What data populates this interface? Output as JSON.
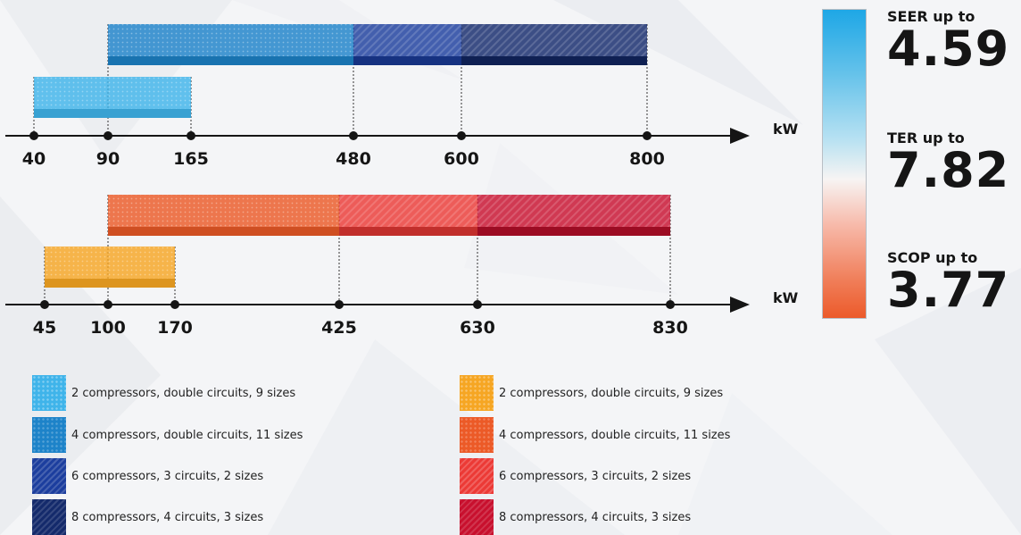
{
  "chart_data": [
    {
      "type": "bar",
      "subtype": "range",
      "unit": "kW",
      "ticks": [
        40,
        90,
        165,
        480,
        600,
        800
      ],
      "series": [
        {
          "name": "2 compressors, double circuits, 9 sizes",
          "range": [
            40,
            165
          ],
          "color": "#3fb4ea"
        },
        {
          "name": "4 compressors, double circuits, 11 sizes",
          "range": [
            90,
            480
          ],
          "color": "#1d83c9"
        },
        {
          "name": "6 compressors, 3 circuits, 2 sizes",
          "range": [
            480,
            600
          ],
          "color": "#1c3e9e"
        },
        {
          "name": "8 compressors, 4 circuits, 3 sizes",
          "range": [
            600,
            800
          ],
          "color": "#142a6b"
        }
      ]
    },
    {
      "type": "bar",
      "subtype": "range",
      "unit": "kW",
      "ticks": [
        45,
        100,
        170,
        425,
        630,
        830
      ],
      "series": [
        {
          "name": "2 compressors, double circuits, 9 sizes",
          "range": [
            45,
            170
          ],
          "color": "#f6a623"
        },
        {
          "name": "4 compressors, double circuits, 11 sizes",
          "range": [
            100,
            425
          ],
          "color": "#ec5a27"
        },
        {
          "name": "6 compressors, 3 circuits, 2 sizes",
          "range": [
            425,
            630
          ],
          "color": "#ec3a36"
        },
        {
          "name": "8 compressors, 4 circuits, 3 sizes",
          "range": [
            630,
            830
          ],
          "color": "#c8102e"
        }
      ]
    }
  ],
  "stats": [
    {
      "label": "SEER up to",
      "value": "4.59"
    },
    {
      "label": "TER up to",
      "value": "7.82"
    },
    {
      "label": "SCOP up to",
      "value": "3.77"
    }
  ],
  "legend": {
    "cooling": [
      {
        "label": "2 compressors, double circuits, 9 sizes"
      },
      {
        "label": "4 compressors, double circuits, 11 sizes"
      },
      {
        "label": "6 compressors, 3 circuits, 2 sizes"
      },
      {
        "label": "8 compressors, 4 circuits, 3 sizes"
      }
    ],
    "heating": [
      {
        "label": "2 compressors, double circuits, 9 sizes"
      },
      {
        "label": "4 compressors, double circuits, 11 sizes"
      },
      {
        "label": "6 compressors, 3 circuits, 2 sizes"
      },
      {
        "label": "8 compressors, 4 circuits, 3 sizes"
      }
    ]
  },
  "colors": {
    "axis": "#151515",
    "gradient_top": "#1ea7e6",
    "gradient_bottom": "#ec5a2a"
  }
}
